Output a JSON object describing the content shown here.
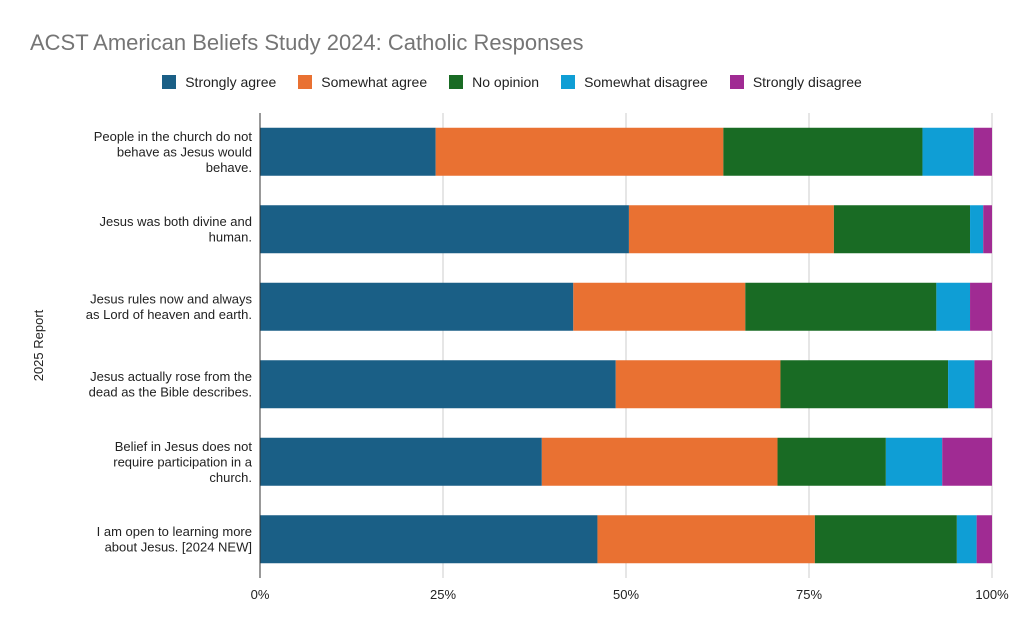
{
  "chart_data": {
    "type": "bar",
    "orientation": "horizontal",
    "stacked": true,
    "title": "ACST American Beliefs Study 2024: Catholic Responses",
    "ylabel": "2025 Report",
    "xlabel": "",
    "xlim": [
      0,
      100
    ],
    "x_ticks": [
      "0%",
      "25%",
      "50%",
      "75%",
      "100%"
    ],
    "x_tick_values": [
      0,
      25,
      50,
      75,
      100
    ],
    "grid": true,
    "legend_position": "top",
    "categories": [
      "People in the church do not behave as Jesus would behave.",
      "Jesus was both divine and human.",
      "Jesus rules now and always as Lord of heaven and earth.",
      "Jesus actually rose from the dead as the Bible describes.",
      "Belief in Jesus does not require participation in a church.",
      "I am open to learning more about Jesus. [2024 NEW]"
    ],
    "category_lines": [
      [
        "People in the church do not",
        "behave as Jesus would",
        "behave."
      ],
      [
        "Jesus was both divine and",
        "human."
      ],
      [
        "Jesus rules now and always",
        "as Lord of heaven and earth."
      ],
      [
        "Jesus actually rose from the",
        "dead as the Bible describes."
      ],
      [
        "Belief in Jesus does not",
        "require participation in a",
        "church."
      ],
      [
        "I am open to learning more",
        "about Jesus. [2024 NEW]"
      ]
    ],
    "series": [
      {
        "name": "Strongly agree",
        "color": "#1a5f86",
        "values": [
          24.0,
          50.4,
          42.8,
          48.6,
          38.5,
          46.1
        ]
      },
      {
        "name": "Somewhat agree",
        "color": "#e97132",
        "values": [
          39.3,
          28.0,
          23.5,
          22.5,
          32.2,
          29.7
        ]
      },
      {
        "name": "No opinion",
        "color": "#196b24",
        "values": [
          27.2,
          18.6,
          26.1,
          22.9,
          14.8,
          19.4
        ]
      },
      {
        "name": "Somewhat disagree",
        "color": "#0f9ed5",
        "values": [
          7.0,
          1.8,
          4.6,
          3.6,
          7.7,
          2.7
        ]
      },
      {
        "name": "Strongly disagree",
        "color": "#a02b93",
        "values": [
          2.5,
          1.2,
          3.0,
          2.4,
          6.8,
          2.1
        ]
      }
    ]
  }
}
